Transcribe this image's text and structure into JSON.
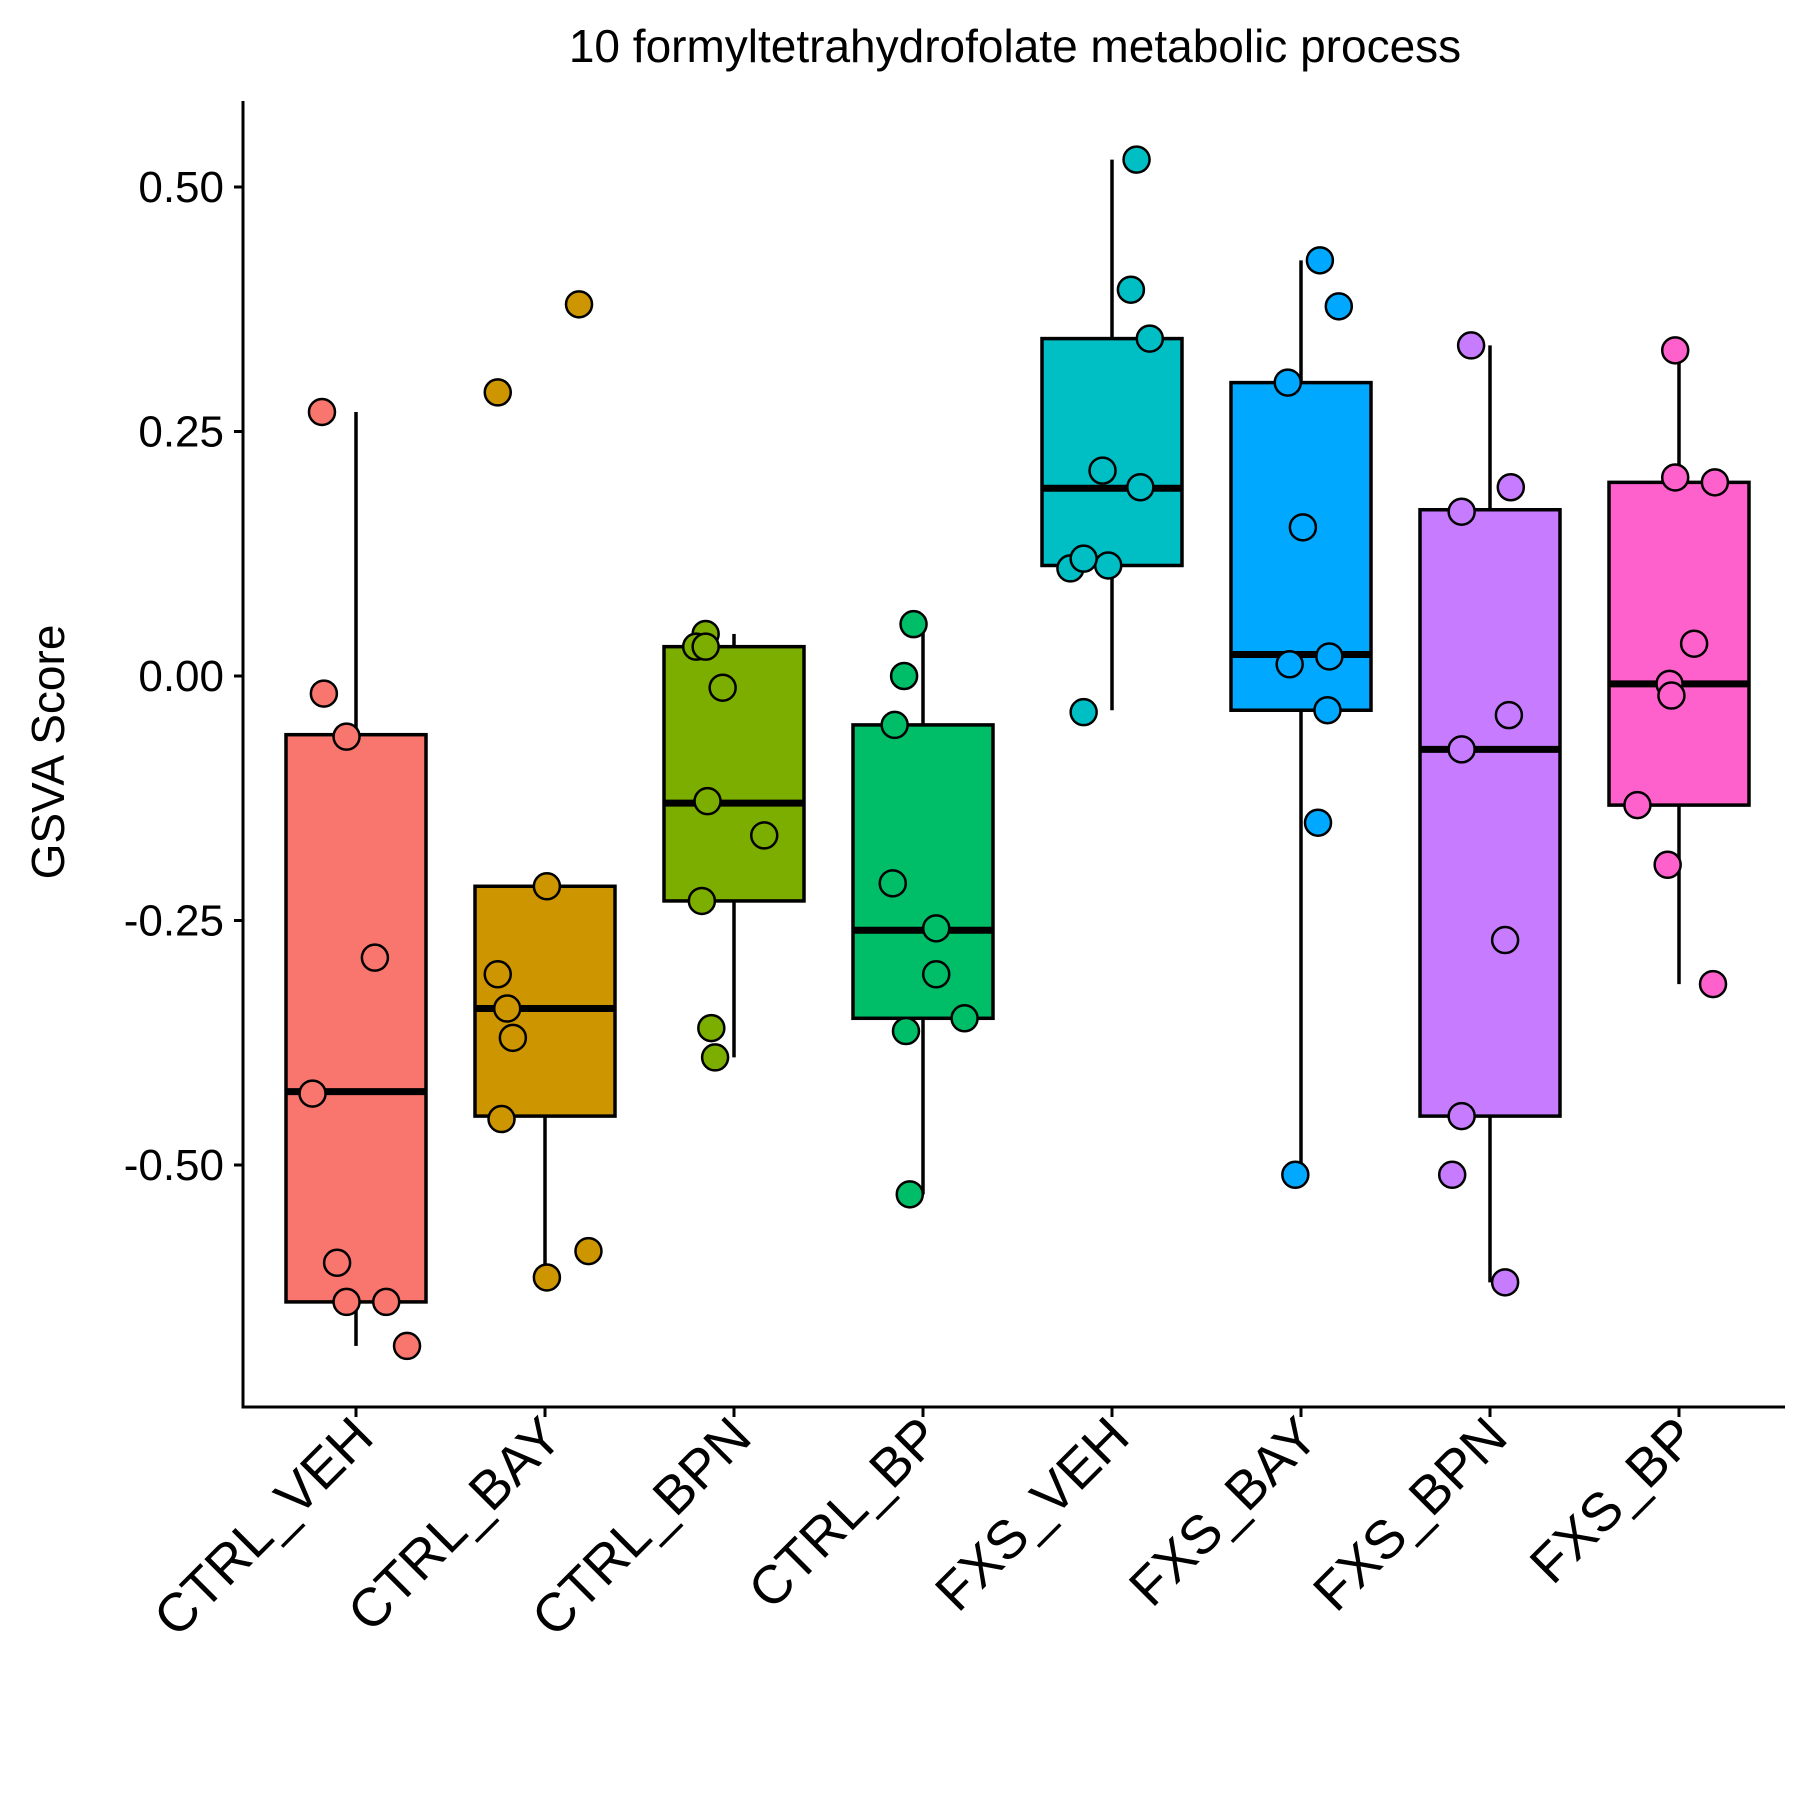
{
  "chart_data": {
    "type": "boxplot",
    "title": "10 formyltetrahydrofolate metabolic process",
    "xlabel": "",
    "ylabel": "GSVA Score",
    "ylim": [
      -0.74,
      0.59
    ],
    "yticks": [
      0.5,
      0.25,
      0.0,
      -0.25,
      -0.5
    ],
    "ytick_labels": [
      "0.50",
      "0.25",
      "0.00",
      "-0.25",
      "-0.50"
    ],
    "grid": false,
    "legend": "none",
    "categories": [
      "CTRL_VEH",
      "CTRL_BAY",
      "CTRL_BPN",
      "CTRL_BP",
      "FXS_VEH",
      "FXS_BAY",
      "FXS_BPN",
      "FXS_BP"
    ],
    "colors": [
      "#F8766D",
      "#CD9600",
      "#7CAE00",
      "#00BE67",
      "#00BFC4",
      "#00A9FF",
      "#C77CFF",
      "#FF61CC"
    ],
    "boxes": [
      {
        "whisker_low": -0.685,
        "q1": -0.64,
        "median": -0.425,
        "q3": -0.06,
        "whisker_high": 0.27
      },
      {
        "whisker_low": -0.615,
        "q1": -0.45,
        "median": -0.34,
        "q3": -0.215,
        "whisker_high": -0.215
      },
      {
        "whisker_low": -0.39,
        "q1": -0.23,
        "median": -0.13,
        "q3": 0.03,
        "whisker_high": 0.043
      },
      {
        "whisker_low": -0.53,
        "q1": -0.35,
        "median": -0.26,
        "q3": -0.05,
        "whisker_high": 0.053
      },
      {
        "whisker_low": -0.035,
        "q1": 0.113,
        "median": 0.192,
        "q3": 0.345,
        "whisker_high": 0.528
      },
      {
        "whisker_low": -0.51,
        "q1": -0.035,
        "median": 0.022,
        "q3": 0.3,
        "whisker_high": 0.425
      },
      {
        "whisker_low": -0.62,
        "q1": -0.45,
        "median": -0.075,
        "q3": 0.17,
        "whisker_high": 0.338
      },
      {
        "whisker_low": -0.315,
        "q1": -0.132,
        "median": -0.008,
        "q3": 0.198,
        "whisker_high": 0.333
      }
    ],
    "points": [
      [
        [
          -0.18,
          0.27
        ],
        [
          -0.17,
          -0.018
        ],
        [
          -0.05,
          -0.062
        ],
        [
          0.1,
          -0.288
        ],
        [
          -0.23,
          -0.427
        ],
        [
          -0.1,
          -0.6
        ],
        [
          -0.05,
          -0.64
        ],
        [
          0.16,
          -0.64
        ],
        [
          0.27,
          -0.685
        ]
      ],
      [
        [
          -0.25,
          0.29
        ],
        [
          0.18,
          0.38
        ],
        [
          0.01,
          -0.215
        ],
        [
          -0.25,
          -0.305
        ],
        [
          -0.2,
          -0.34
        ],
        [
          -0.17,
          -0.37
        ],
        [
          -0.23,
          -0.453
        ],
        [
          0.23,
          -0.588
        ],
        [
          0.01,
          -0.615
        ]
      ],
      [
        [
          -0.15,
          0.043
        ],
        [
          -0.2,
          0.03
        ],
        [
          -0.15,
          0.03
        ],
        [
          -0.06,
          -0.012
        ],
        [
          -0.14,
          -0.128
        ],
        [
          0.16,
          -0.163
        ],
        [
          -0.17,
          -0.23
        ],
        [
          -0.12,
          -0.36
        ],
        [
          -0.1,
          -0.39
        ]
      ],
      [
        [
          -0.05,
          0.053
        ],
        [
          -0.1,
          0.0
        ],
        [
          -0.15,
          -0.05
        ],
        [
          -0.16,
          -0.212
        ],
        [
          0.07,
          -0.258
        ],
        [
          0.07,
          -0.305
        ],
        [
          0.22,
          -0.35
        ],
        [
          -0.09,
          -0.363
        ],
        [
          -0.07,
          -0.53
        ]
      ],
      [
        [
          0.13,
          0.528
        ],
        [
          0.1,
          0.395
        ],
        [
          0.2,
          0.345
        ],
        [
          -0.05,
          0.21
        ],
        [
          0.15,
          0.193
        ],
        [
          -0.02,
          0.113
        ],
        [
          -0.22,
          0.11
        ],
        [
          -0.15,
          0.12
        ],
        [
          -0.15,
          -0.037
        ]
      ],
      [
        [
          0.1,
          0.425
        ],
        [
          0.2,
          0.378
        ],
        [
          -0.07,
          0.3
        ],
        [
          0.01,
          0.152
        ],
        [
          -0.06,
          0.012
        ],
        [
          0.15,
          0.02
        ],
        [
          0.14,
          -0.035
        ],
        [
          0.09,
          -0.15
        ],
        [
          -0.03,
          -0.51
        ]
      ],
      [
        [
          -0.1,
          0.338
        ],
        [
          0.11,
          0.193
        ],
        [
          -0.15,
          0.168
        ],
        [
          0.1,
          -0.04
        ],
        [
          -0.15,
          -0.075
        ],
        [
          0.08,
          -0.27
        ],
        [
          -0.15,
          -0.45
        ],
        [
          -0.2,
          -0.51
        ],
        [
          0.08,
          -0.62
        ]
      ],
      [
        [
          -0.02,
          0.333
        ],
        [
          -0.02,
          0.203
        ],
        [
          0.19,
          0.198
        ],
        [
          0.08,
          0.033
        ],
        [
          -0.05,
          -0.008
        ],
        [
          -0.04,
          -0.02
        ],
        [
          -0.22,
          -0.132
        ],
        [
          -0.06,
          -0.193
        ],
        [
          0.18,
          -0.315
        ]
      ]
    ]
  }
}
